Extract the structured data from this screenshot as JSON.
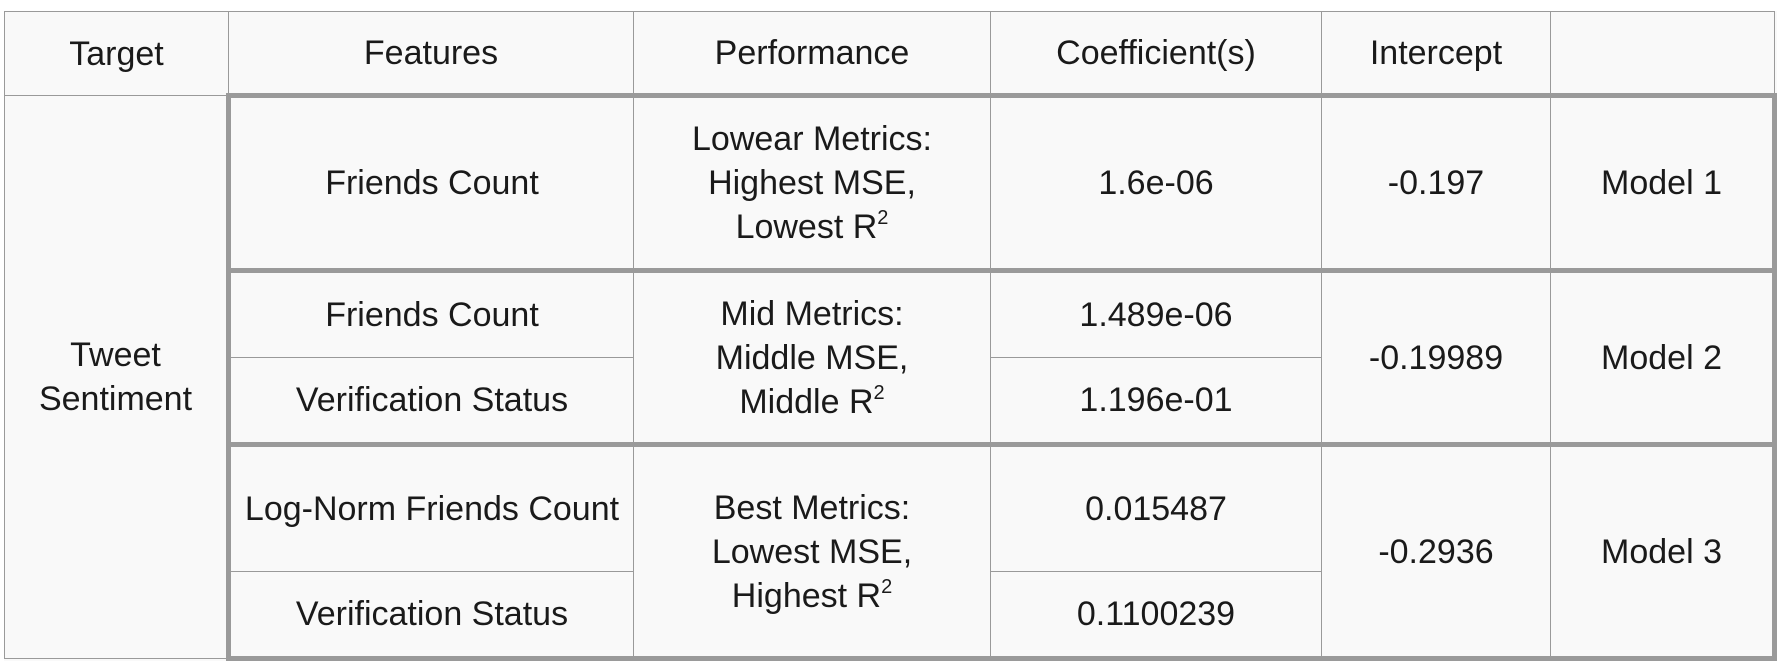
{
  "headers": [
    "Target",
    "Features",
    "Performance",
    "Coefficient(s)",
    "Intercept",
    ""
  ],
  "target": "Tweet Sentiment",
  "models": [
    {
      "label": "Model 1",
      "intercept": "-0.197",
      "performance": {
        "prefix": "Lowear Metrics:",
        "line2": "Highest MSE,",
        "line3": "Lowest R",
        "sup": "2"
      },
      "rows": [
        {
          "feature": "Friends Count",
          "coefficient": "1.6e-06"
        }
      ]
    },
    {
      "label": "Model 2",
      "intercept": "-0.19989",
      "performance": {
        "prefix": "Mid Metrics:",
        "line2": "Middle MSE,",
        "line3": "Middle R",
        "sup": "2"
      },
      "rows": [
        {
          "feature": "Friends Count",
          "coefficient": "1.489e-06"
        },
        {
          "feature": "Verification Status",
          "coefficient": "1.196e-01"
        }
      ]
    },
    {
      "label": "Model 3",
      "intercept": "-0.2936",
      "performance": {
        "prefix": "Best Metrics:",
        "line2": "Lowest MSE,",
        "line3": "Highest R",
        "sup": "2"
      },
      "rows": [
        {
          "feature": "Log-Norm Friends Count",
          "coefficient": "0.015487"
        },
        {
          "feature": "Verification Status",
          "coefficient": "0.1100239"
        }
      ]
    }
  ],
  "colors": {
    "cell_background": "#f9f9f9",
    "border": "#9a9a9a",
    "text": "#1a1a1a"
  }
}
